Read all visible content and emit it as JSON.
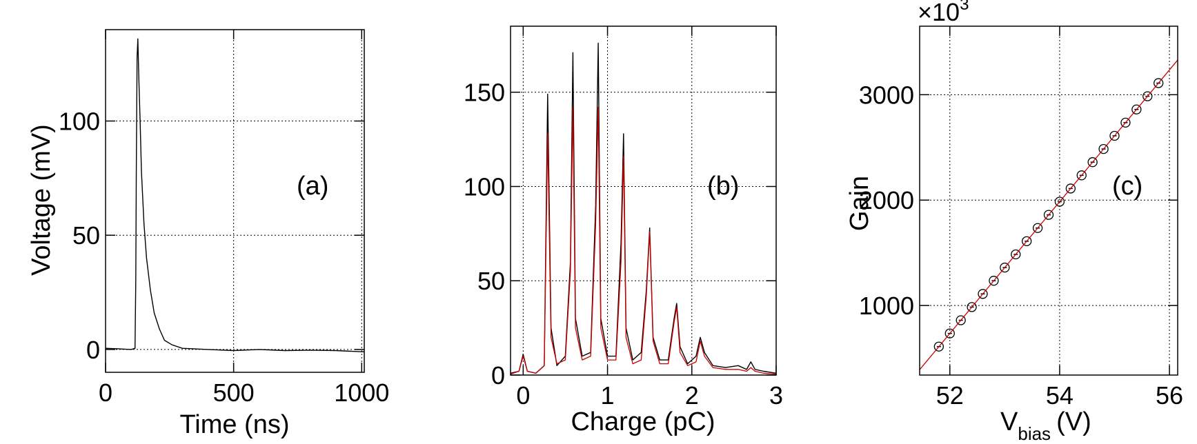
{
  "chart_data": [
    {
      "type": "line",
      "panel_label": "(a)",
      "xlabel": "Time (ns)",
      "ylabel": "Voltage (mV)",
      "xlim": [
        0,
        1010
      ],
      "ylim": [
        -10,
        140
      ],
      "xticks": [
        0,
        500,
        1000
      ],
      "yticks": [
        0,
        50,
        100
      ],
      "grid": true,
      "series": [
        {
          "color": "#000000",
          "x": [
            0,
            50,
            100,
            115,
            118,
            120,
            123,
            126,
            130,
            135,
            140,
            150,
            160,
            175,
            190,
            210,
            230,
            260,
            300,
            400,
            500,
            600,
            700,
            800,
            900,
            1000,
            1010
          ],
          "y": [
            0.5,
            0.3,
            0,
            0.5,
            30,
            80,
            128,
            136,
            118,
            100,
            78,
            55,
            40,
            26,
            16,
            9,
            4,
            2,
            0.5,
            0,
            -0.5,
            0,
            -0.5,
            -0.3,
            -0.5,
            -1,
            -1
          ]
        }
      ]
    },
    {
      "type": "line",
      "panel_label": "(b)",
      "xlabel": "Charge (pC)",
      "ylabel": "",
      "xlim": [
        -0.15,
        3.0
      ],
      "ylim": [
        0,
        185
      ],
      "xticks": [
        0,
        1,
        2,
        3
      ],
      "yticks": [
        0,
        50,
        100,
        150
      ],
      "grid": true,
      "series": [
        {
          "name": "histogram",
          "color": "#000000",
          "x": [
            -0.15,
            -0.05,
            0.0,
            0.05,
            0.15,
            0.25,
            0.29,
            0.33,
            0.4,
            0.5,
            0.56,
            0.59,
            0.62,
            0.7,
            0.8,
            0.86,
            0.89,
            0.92,
            1.0,
            1.1,
            1.16,
            1.19,
            1.22,
            1.3,
            1.4,
            1.46,
            1.5,
            1.54,
            1.62,
            1.72,
            1.79,
            1.82,
            1.86,
            1.95,
            2.05,
            2.1,
            2.15,
            2.25,
            2.4,
            2.55,
            2.65,
            2.7,
            2.75,
            2.85,
            3.0
          ],
          "y": [
            1,
            2,
            11,
            2,
            1,
            5,
            149,
            25,
            5,
            10,
            60,
            171,
            30,
            10,
            12,
            90,
            176,
            30,
            10,
            10,
            70,
            128,
            25,
            8,
            12,
            45,
            78,
            20,
            8,
            8,
            30,
            38,
            15,
            6,
            10,
            20,
            12,
            5,
            4,
            5,
            3,
            7,
            3,
            2,
            1
          ]
        },
        {
          "name": "fit",
          "color": "#cc0000",
          "x": [
            -0.15,
            -0.05,
            0.0,
            0.05,
            0.15,
            0.25,
            0.29,
            0.33,
            0.4,
            0.5,
            0.56,
            0.59,
            0.62,
            0.7,
            0.8,
            0.86,
            0.89,
            0.92,
            1.0,
            1.1,
            1.16,
            1.19,
            1.22,
            1.3,
            1.4,
            1.46,
            1.5,
            1.54,
            1.62,
            1.72,
            1.79,
            1.82,
            1.86,
            1.95,
            2.05,
            2.1,
            2.15,
            2.25,
            2.4,
            2.55,
            2.65,
            2.7,
            2.75,
            2.85,
            3.0
          ],
          "y": [
            0.5,
            2,
            10,
            2,
            1,
            5,
            128,
            20,
            6,
            8,
            55,
            142,
            25,
            8,
            10,
            80,
            142,
            25,
            8,
            8,
            60,
            116,
            20,
            6,
            8,
            42,
            76,
            18,
            6,
            6,
            28,
            36,
            12,
            5,
            7,
            18,
            10,
            4,
            3,
            3,
            2,
            4,
            2,
            1,
            0.5
          ]
        }
      ]
    },
    {
      "type": "scatter",
      "panel_label": "(c)",
      "xlabel_main": "V",
      "xlabel_sub": "bias",
      "xlabel_unit": "(V)",
      "ylabel": "Gain",
      "multiplier_base": "×10",
      "multiplier_exp": "3",
      "xlim": [
        51.45,
        56.15
      ],
      "ylim": [
        340,
        3650
      ],
      "xticks": [
        52,
        54,
        56
      ],
      "yticks": [
        1000,
        2000,
        3000
      ],
      "grid": true,
      "series": [
        {
          "name": "data",
          "color": "#000000",
          "x": [
            51.8,
            52.0,
            52.2,
            52.4,
            52.6,
            52.8,
            53.0,
            53.2,
            53.4,
            53.6,
            53.8,
            54.0,
            54.2,
            54.4,
            54.6,
            54.8,
            55.0,
            55.2,
            55.4,
            55.6,
            55.8
          ],
          "y": [
            610,
            735,
            860,
            985,
            1110,
            1235,
            1360,
            1485,
            1610,
            1735,
            1860,
            1985,
            2110,
            2235,
            2360,
            2485,
            2610,
            2735,
            2860,
            2985,
            3110
          ]
        },
        {
          "name": "fit",
          "color": "#cc0000",
          "x": [
            51.45,
            56.15
          ],
          "y": [
            391,
            3329
          ]
        }
      ]
    }
  ]
}
